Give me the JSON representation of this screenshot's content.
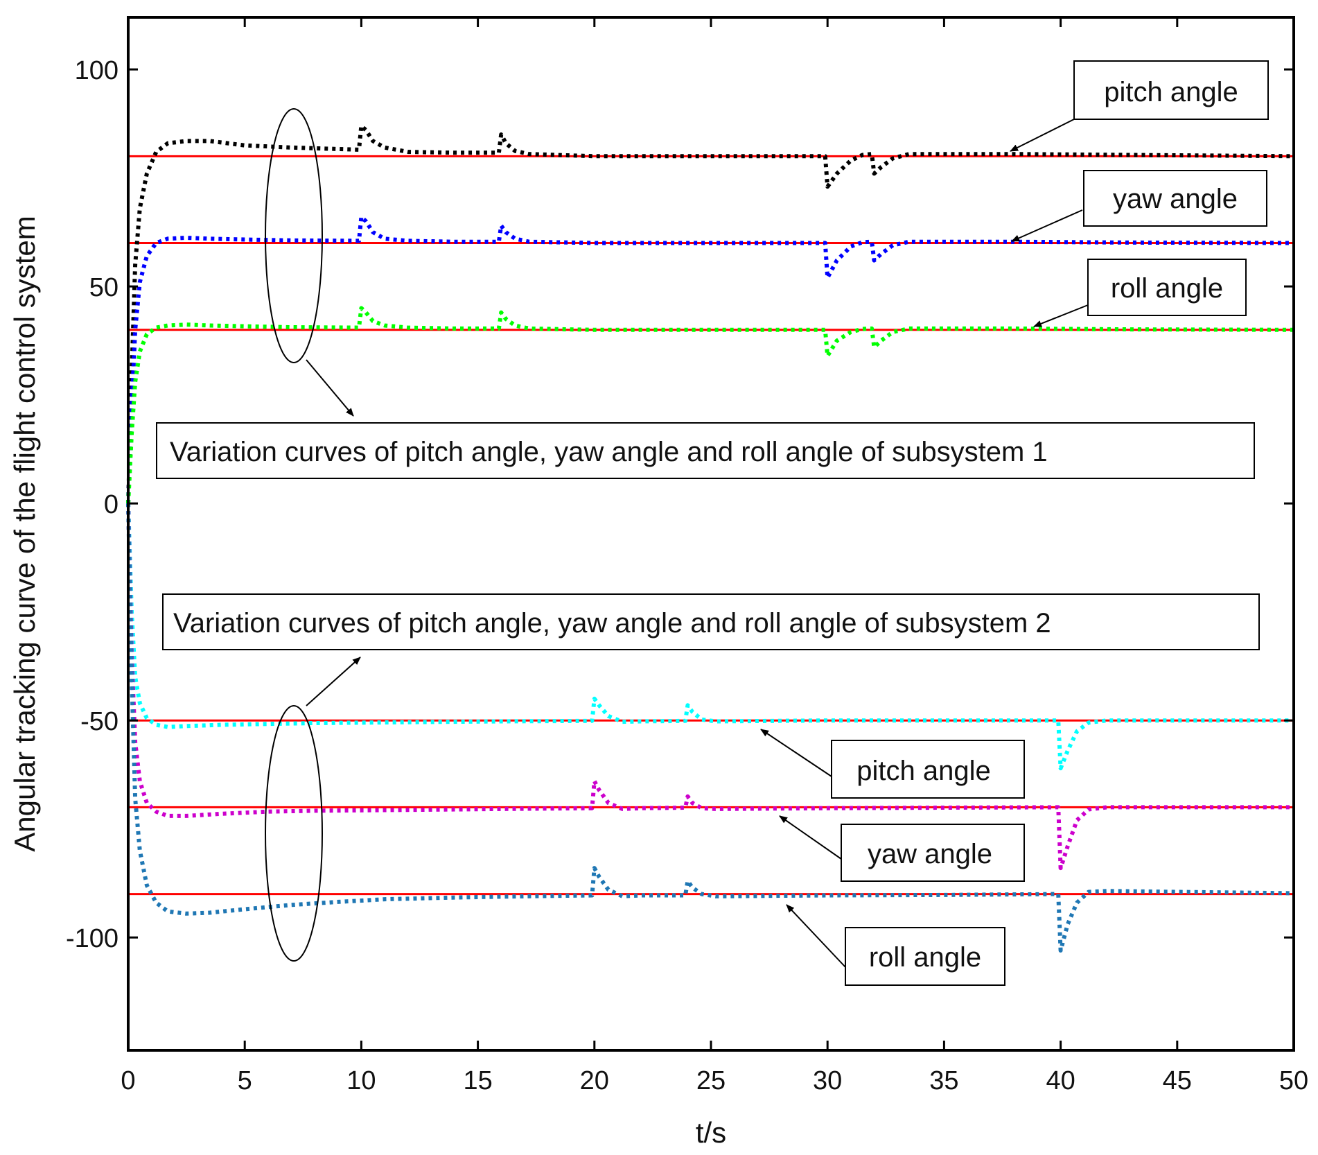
{
  "chart_data": {
    "type": "line",
    "xlabel": "t/s",
    "ylabel": "Angular tracking curve of the flight control system",
    "xlim": [
      0,
      50
    ],
    "ylim": [
      -126,
      112
    ],
    "xticks": [
      0,
      5,
      10,
      15,
      20,
      25,
      30,
      35,
      40,
      45,
      50
    ],
    "xtick_labels": [
      "0",
      "5",
      "10",
      "15",
      "20",
      "25",
      "30",
      "35",
      "40",
      "45",
      "50"
    ],
    "yticks": [
      100,
      50,
      0,
      -50,
      -100
    ],
    "ytick_labels": [
      "100",
      "50",
      "0",
      "-50",
      "-100"
    ],
    "grid": false,
    "references": [
      {
        "name": "reference 80",
        "value": 80,
        "color": "#ff0000"
      },
      {
        "name": "reference 60",
        "value": 60,
        "color": "#ff0000"
      },
      {
        "name": "reference 40",
        "value": 40,
        "color": "#ff0000"
      },
      {
        "name": "reference -50",
        "value": -50,
        "color": "#ff0000"
      },
      {
        "name": "reference -70",
        "value": -70,
        "color": "#ff0000"
      },
      {
        "name": "reference -90",
        "value": -90,
        "color": "#ff0000"
      }
    ],
    "series": [
      {
        "name": "pitch angle (subsystem 1)",
        "color": "#000000",
        "x": [
          0,
          0.15,
          0.3,
          0.5,
          0.8,
          1.2,
          1.7,
          2.5,
          3.5,
          5,
          7,
          9.9,
          10.0,
          10.2,
          10.5,
          11,
          12,
          14,
          15.9,
          16.0,
          16.2,
          16.6,
          17.2,
          20,
          25,
          29.9,
          30.0,
          30.4,
          31,
          31.5,
          31.9,
          32.0,
          32.3,
          32.8,
          33.5,
          38,
          43,
          50
        ],
        "y": [
          0,
          30,
          55,
          68,
          76,
          81,
          83,
          83.5,
          83.5,
          82.5,
          82,
          81.5,
          87,
          86,
          83.5,
          82,
          81,
          80.8,
          80.8,
          85,
          83,
          81.2,
          80.5,
          80,
          80,
          80,
          73,
          76,
          79,
          80.3,
          80.5,
          76,
          77.5,
          79.5,
          80.5,
          80.5,
          80.3,
          80
        ]
      },
      {
        "name": "yaw angle (subsystem 1)",
        "color": "#0000ff",
        "x": [
          0,
          0.15,
          0.3,
          0.5,
          0.8,
          1.2,
          1.7,
          2.5,
          3.5,
          5,
          7,
          9.9,
          10.0,
          10.2,
          10.5,
          11,
          12,
          14,
          15.9,
          16.0,
          16.2,
          16.6,
          17.2,
          20,
          25,
          29.9,
          30.0,
          30.4,
          31,
          31.5,
          31.9,
          32.0,
          32.3,
          32.8,
          33.5,
          38,
          43,
          50
        ],
        "y": [
          0,
          22,
          40,
          51,
          57,
          60,
          61,
          61.2,
          61,
          60.8,
          60.6,
          60.5,
          66,
          65,
          62.5,
          61,
          60.5,
          60.3,
          60.3,
          64,
          62.5,
          61,
          60.3,
          60,
          60,
          60,
          52,
          56,
          59.2,
          60.2,
          60.3,
          56,
          57.5,
          59.5,
          60.3,
          60.3,
          60.1,
          60
        ]
      },
      {
        "name": "roll angle (subsystem 1)",
        "color": "#00ff00",
        "x": [
          0,
          0.15,
          0.3,
          0.5,
          0.8,
          1.2,
          1.7,
          2.5,
          3.5,
          5,
          7,
          9.9,
          10.0,
          10.2,
          10.5,
          11,
          12,
          14,
          15.9,
          16.0,
          16.2,
          16.6,
          17.2,
          20,
          25,
          29.9,
          30.0,
          30.4,
          31,
          31.5,
          31.9,
          32.0,
          32.3,
          32.8,
          33.5,
          38,
          43,
          50
        ],
        "y": [
          0,
          16,
          28,
          35,
          39,
          40.5,
          41,
          41.2,
          41,
          40.8,
          40.6,
          40.5,
          45,
          44,
          42,
          41,
          40.5,
          40.3,
          40.3,
          44,
          42.5,
          41,
          40.3,
          40,
          40,
          40,
          34,
          37.5,
          39.5,
          40.2,
          40.3,
          36,
          37.5,
          39.5,
          40.3,
          40.3,
          40.1,
          40
        ]
      },
      {
        "name": "pitch angle (subsystem 2)",
        "color": "#00ffff",
        "x": [
          0,
          0.15,
          0.3,
          0.5,
          0.8,
          1.2,
          1.7,
          2.5,
          4,
          6,
          8,
          12,
          16,
          19.9,
          20.0,
          20.2,
          20.6,
          21.2,
          22,
          23.9,
          24.0,
          24.2,
          24.6,
          25.2,
          30,
          35,
          39.9,
          40.0,
          40.3,
          40.7,
          41.2,
          42,
          45,
          50
        ],
        "y": [
          0,
          -25,
          -40,
          -46,
          -49.5,
          -51,
          -51.5,
          -51.3,
          -51,
          -50.8,
          -50.6,
          -50.4,
          -50.2,
          -50.1,
          -45,
          -46.5,
          -49,
          -50.3,
          -50.2,
          -50.1,
          -46.5,
          -48,
          -49.8,
          -50.2,
          -50,
          -50,
          -50,
          -61,
          -57,
          -52.5,
          -50.5,
          -50,
          -50,
          -50
        ]
      },
      {
        "name": "yaw angle (subsystem 2)",
        "color": "#cc00cc",
        "x": [
          0,
          0.15,
          0.3,
          0.5,
          0.8,
          1.2,
          1.7,
          2.5,
          4,
          6,
          8,
          12,
          16,
          19.9,
          20.0,
          20.2,
          20.6,
          21.2,
          22,
          23.9,
          24.0,
          24.2,
          24.6,
          25.2,
          30,
          35,
          39.9,
          40.0,
          40.3,
          40.7,
          41.2,
          42,
          45,
          50
        ],
        "y": [
          0,
          -35,
          -55,
          -64,
          -69,
          -71,
          -72,
          -72,
          -71.5,
          -71,
          -70.8,
          -70.6,
          -70.4,
          -70.2,
          -64,
          -66,
          -69,
          -70.4,
          -70.2,
          -70.1,
          -67.5,
          -69,
          -70.2,
          -70.4,
          -70.2,
          -70.1,
          -70,
          -84,
          -79,
          -73,
          -70.5,
          -70,
          -70,
          -70
        ]
      },
      {
        "name": "roll angle (subsystem 2)",
        "color": "#1f77b4",
        "x": [
          0,
          0.15,
          0.3,
          0.5,
          0.8,
          1.2,
          1.7,
          2.5,
          3.5,
          5,
          7,
          9,
          11,
          14,
          17,
          19.9,
          20.0,
          20.2,
          20.6,
          21.2,
          22,
          23.9,
          24.0,
          24.2,
          24.6,
          25.2,
          30,
          35,
          39.9,
          40.0,
          40.3,
          40.7,
          41.2,
          42,
          45,
          50
        ],
        "y": [
          0,
          -40,
          -68,
          -80,
          -88,
          -92,
          -94,
          -94.5,
          -94.3,
          -93.5,
          -92.5,
          -91.8,
          -91.2,
          -90.8,
          -90.5,
          -90.3,
          -84,
          -86,
          -89,
          -90.5,
          -90.3,
          -90.3,
          -87,
          -88.5,
          -90,
          -90.5,
          -90.3,
          -90.2,
          -90,
          -103,
          -97,
          -92,
          -89.5,
          -89.3,
          -89.5,
          -89.8
        ]
      }
    ],
    "annotations": {
      "sub1_pitch": "pitch angle",
      "sub1_yaw": "yaw angle",
      "sub1_roll": "roll angle",
      "sub1_caption": "Variation curves of pitch angle, yaw angle and roll angle of subsystem 1",
      "sub2_caption": "Variation curves of pitch angle, yaw angle and roll angle of subsystem 2",
      "sub2_pitch": "pitch angle",
      "sub2_yaw": "yaw angle",
      "sub2_roll": "roll angle"
    }
  }
}
